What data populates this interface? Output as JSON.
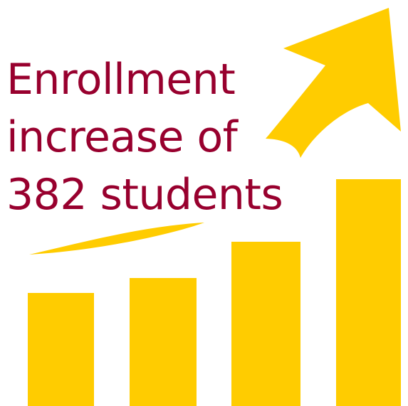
{
  "headline": {
    "line1": "Enrollment",
    "line2": "increase of",
    "line3": "382 students"
  },
  "colors": {
    "text": "#98002e",
    "accent": "#ffcc00",
    "background": "#ffffff"
  },
  "icons": [
    "bar-chart-icon",
    "growth-arrow-icon"
  ],
  "bar_levels": [
    0.38,
    0.42,
    0.56,
    0.79
  ]
}
